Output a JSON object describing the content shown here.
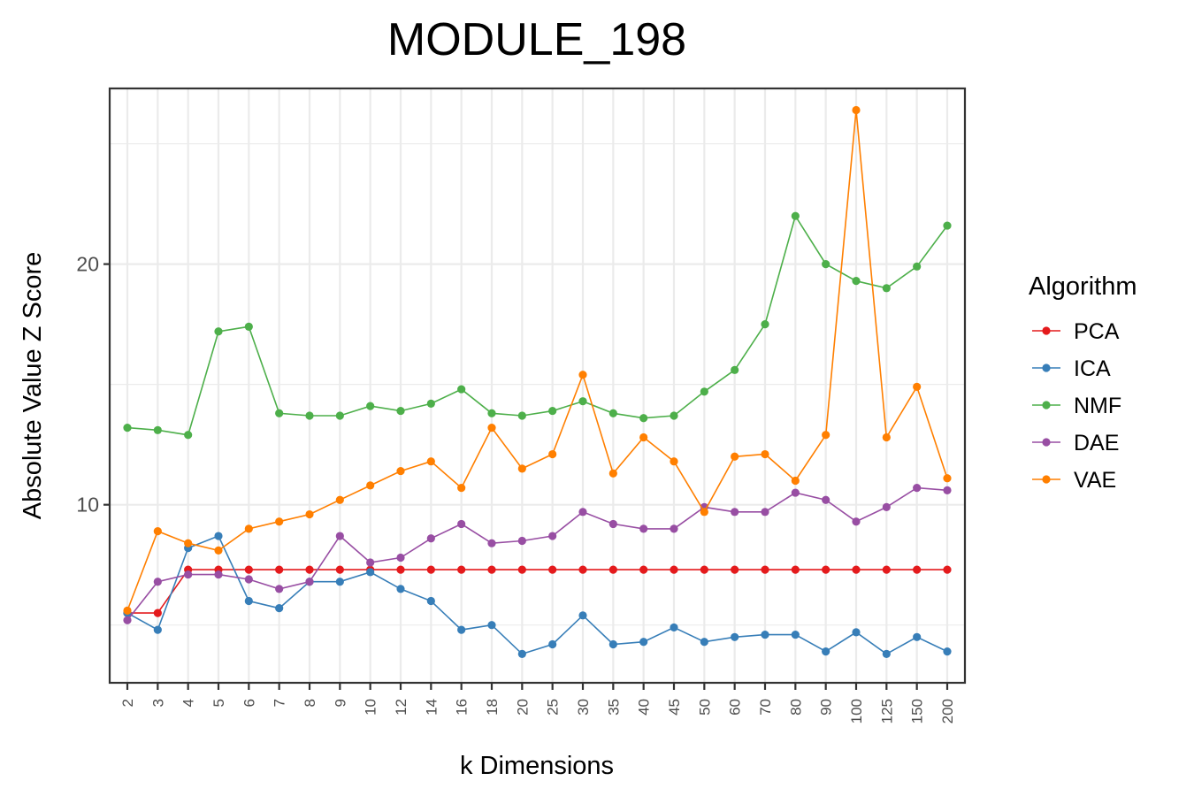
{
  "chart_data": {
    "type": "line",
    "title": "MODULE_198",
    "xlabel": "k Dimensions",
    "ylabel": "Absolute Value Z Score",
    "categories": [
      "2",
      "3",
      "4",
      "5",
      "6",
      "7",
      "8",
      "9",
      "10",
      "12",
      "14",
      "16",
      "18",
      "20",
      "25",
      "30",
      "35",
      "40",
      "45",
      "50",
      "60",
      "70",
      "80",
      "90",
      "100",
      "125",
      "150",
      "200"
    ],
    "ylim": [
      2.6,
      27.3
    ],
    "yticks": [
      10,
      20
    ],
    "grid": true,
    "legend_title": "Algorithm",
    "legend_position": "right",
    "series": [
      {
        "name": "PCA",
        "color": "#e41a1c",
        "values": [
          5.5,
          5.5,
          7.3,
          7.3,
          7.3,
          7.3,
          7.3,
          7.3,
          7.3,
          7.3,
          7.3,
          7.3,
          7.3,
          7.3,
          7.3,
          7.3,
          7.3,
          7.3,
          7.3,
          7.3,
          7.3,
          7.3,
          7.3,
          7.3,
          7.3,
          7.3,
          7.3,
          7.3
        ]
      },
      {
        "name": "ICA",
        "color": "#377eb8",
        "values": [
          5.5,
          4.8,
          8.2,
          8.7,
          6.0,
          5.7,
          6.8,
          6.8,
          7.2,
          6.5,
          6.0,
          4.8,
          5.0,
          3.8,
          4.2,
          5.4,
          4.2,
          4.3,
          4.9,
          4.3,
          4.5,
          4.6,
          4.6,
          3.9,
          4.7,
          3.8,
          4.5,
          3.9
        ]
      },
      {
        "name": "NMF",
        "color": "#4daf4a",
        "values": [
          13.2,
          13.1,
          12.9,
          17.2,
          17.4,
          13.8,
          13.7,
          13.7,
          14.1,
          13.9,
          14.2,
          14.8,
          13.8,
          13.7,
          13.9,
          14.3,
          13.8,
          13.6,
          13.7,
          14.7,
          15.6,
          17.5,
          22.0,
          20.0,
          19.3,
          19.0,
          19.9,
          21.6
        ]
      },
      {
        "name": "DAE",
        "color": "#984ea3",
        "values": [
          5.2,
          6.8,
          7.1,
          7.1,
          6.9,
          6.5,
          6.8,
          8.7,
          7.6,
          7.8,
          8.6,
          9.2,
          8.4,
          8.5,
          8.7,
          9.7,
          9.2,
          9.0,
          9.0,
          9.9,
          9.7,
          9.7,
          10.5,
          10.2,
          9.3,
          9.9,
          10.7,
          10.6
        ]
      },
      {
        "name": "VAE",
        "color": "#ff7f00",
        "values": [
          5.6,
          8.9,
          8.4,
          8.1,
          9.0,
          9.3,
          9.6,
          10.2,
          10.8,
          11.4,
          11.8,
          10.7,
          13.2,
          11.5,
          12.1,
          15.4,
          11.3,
          12.8,
          11.8,
          9.7,
          12.0,
          12.1,
          11.0,
          12.9,
          26.4,
          12.8,
          14.9,
          11.1
        ]
      }
    ]
  }
}
